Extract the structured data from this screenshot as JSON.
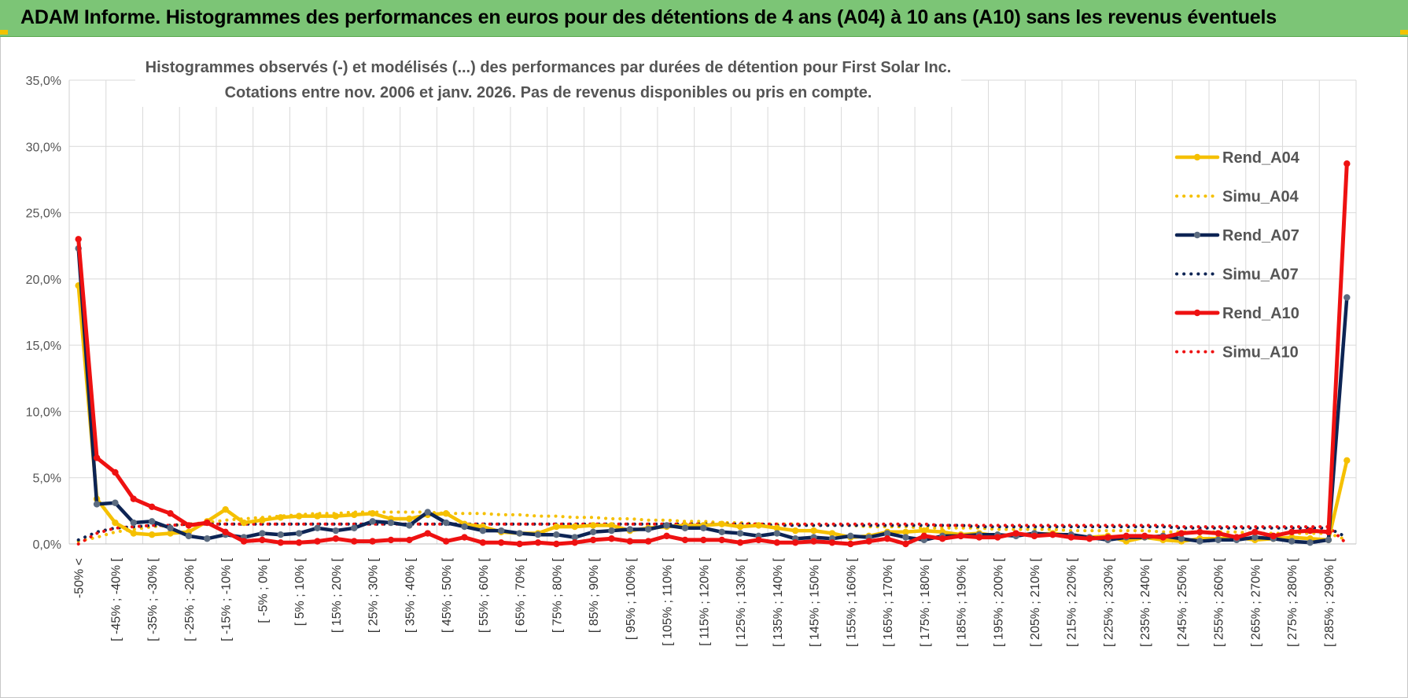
{
  "header": {
    "title": "ADAM Informe. Histogrammes des performances en euros pour des détentions de 4 ans (A04) à 10 ans (A10) sans les revenus éventuels"
  },
  "colors": {
    "a04": "#f5c000",
    "a07": "#0d2454",
    "a07_marker": "#5b6b80",
    "a10": "#ee1111",
    "header_bg": "#7cc576"
  },
  "chart_data": {
    "type": "line",
    "title": [
      "Histogrammes observés (-) et modélisés (...) des performances par durées de détention pour First Solar Inc.",
      "Cotations entre nov. 2006 et janv. 2026. Pas de revenus disponibles ou pris en compte."
    ],
    "ylim": [
      0,
      35
    ],
    "yticks": [
      "0,0%",
      "5,0%",
      "10,0%",
      "15,0%",
      "20,0%",
      "25,0%",
      "30,0%",
      "35,0%"
    ],
    "xlabels": [
      "-50% <",
      "[ -45% ; -40% [",
      "[ -35% ; -30% [",
      "[ -25% ; -20% [",
      "[ -15% ; -10% [",
      "[ -5% ; 0% [",
      "[ 5% ; 10% [",
      "[ 15% ; 20% [",
      "[ 25% ; 30% [",
      "[ 35% ; 40% [",
      "[ 45% ; 50% [",
      "[ 55% ; 60% [",
      "[ 65% ; 70% [",
      "[ 75% ; 80% [",
      "[ 85% ; 90% [",
      "[ 95% ; 100% [",
      "[ 105% ; 110% [",
      "[ 115% ; 120% [",
      "[ 125% ; 130% [",
      "[ 135% ; 140% [",
      "[ 145% ; 150% [",
      "[ 155% ; 160% [",
      "[ 165% ; 170% [",
      "[ 175% ; 180% [",
      "[ 185% ; 190% [",
      "[ 195% ; 200% [",
      "[ 205% ; 210% [",
      "[ 215% ; 220% [",
      "[ 225% ; 230% [",
      "[ 235% ; 240% [",
      "[ 245% ; 250% [",
      "[ 255% ; 260% [",
      "[ 265% ; 270% [",
      "[ 275% ; 280% [",
      "[ 285% ; 290% ["
    ],
    "n_points": 70,
    "series": [
      {
        "name": "Rend_A04",
        "style": "solid",
        "values": [
          19.5,
          3.4,
          1.6,
          0.8,
          0.7,
          0.8,
          0.9,
          1.7,
          2.6,
          1.6,
          1.8,
          2.0,
          2.1,
          2.1,
          2.1,
          2.2,
          2.3,
          1.9,
          1.9,
          2.2,
          2.3,
          1.5,
          1.3,
          0.9,
          0.8,
          0.8,
          1.3,
          1.3,
          1.4,
          1.4,
          1.0,
          1.2,
          1.3,
          1.4,
          1.4,
          1.5,
          1.3,
          1.4,
          1.2,
          1.0,
          1.0,
          0.8,
          0.5,
          0.6,
          0.9,
          0.9,
          1.0,
          0.9,
          0.7,
          0.8,
          0.6,
          0.7,
          0.7,
          0.8,
          0.6,
          0.5,
          0.6,
          0.2,
          0.5,
          0.3,
          0.2,
          0.4,
          0.4,
          0.5,
          0.3,
          0.4,
          0.5,
          0.4,
          0.3,
          6.3
        ]
      },
      {
        "name": "Simu_A04",
        "style": "dotted",
        "values": [
          0.2,
          0.5,
          0.9,
          1.1,
          1.3,
          1.4,
          1.5,
          1.6,
          1.8,
          1.9,
          2.0,
          2.1,
          2.2,
          2.3,
          2.3,
          2.4,
          2.4,
          2.4,
          2.4,
          2.4,
          2.3,
          2.3,
          2.3,
          2.2,
          2.2,
          2.1,
          2.1,
          2.0,
          2.0,
          1.9,
          1.9,
          1.8,
          1.8,
          1.7,
          1.7,
          1.6,
          1.6,
          1.5,
          1.5,
          1.5,
          1.4,
          1.4,
          1.4,
          1.3,
          1.3,
          1.3,
          1.2,
          1.2,
          1.2,
          1.2,
          1.1,
          1.1,
          1.1,
          1.1,
          1.0,
          1.0,
          1.0,
          1.0,
          1.0,
          0.9,
          0.9,
          0.9,
          0.9,
          0.9,
          0.8,
          0.8,
          0.8,
          0.8,
          0.8,
          0.3
        ]
      },
      {
        "name": "Rend_A07",
        "style": "solid",
        "values": [
          22.3,
          3.0,
          3.1,
          1.6,
          1.7,
          1.2,
          0.6,
          0.4,
          0.7,
          0.5,
          0.8,
          0.7,
          0.8,
          1.2,
          1.0,
          1.2,
          1.7,
          1.6,
          1.4,
          2.4,
          1.6,
          1.3,
          1.0,
          1.0,
          0.8,
          0.7,
          0.7,
          0.5,
          0.9,
          1.0,
          1.1,
          1.1,
          1.4,
          1.2,
          1.2,
          0.9,
          0.8,
          0.6,
          0.8,
          0.4,
          0.5,
          0.4,
          0.6,
          0.5,
          0.8,
          0.5,
          0.3,
          0.6,
          0.6,
          0.7,
          0.7,
          0.6,
          0.8,
          0.7,
          0.7,
          0.5,
          0.3,
          0.5,
          0.5,
          0.6,
          0.4,
          0.2,
          0.3,
          0.3,
          0.5,
          0.4,
          0.2,
          0.1,
          0.3,
          18.6
        ]
      },
      {
        "name": "Simu_A07",
        "style": "dotted",
        "values": [
          0.3,
          0.9,
          1.2,
          1.3,
          1.4,
          1.4,
          1.5,
          1.5,
          1.5,
          1.5,
          1.5,
          1.5,
          1.5,
          1.5,
          1.5,
          1.5,
          1.5,
          1.5,
          1.5,
          1.5,
          1.5,
          1.5,
          1.5,
          1.5,
          1.5,
          1.5,
          1.5,
          1.5,
          1.5,
          1.5,
          1.5,
          1.5,
          1.5,
          1.5,
          1.5,
          1.5,
          1.5,
          1.5,
          1.4,
          1.4,
          1.4,
          1.4,
          1.4,
          1.4,
          1.4,
          1.4,
          1.4,
          1.4,
          1.4,
          1.3,
          1.3,
          1.3,
          1.3,
          1.3,
          1.3,
          1.3,
          1.3,
          1.3,
          1.3,
          1.3,
          1.2,
          1.2,
          1.2,
          1.2,
          1.2,
          1.2,
          1.2,
          1.2,
          1.2,
          0.5
        ]
      },
      {
        "name": "Rend_A10",
        "style": "solid",
        "values": [
          23.0,
          6.5,
          5.4,
          3.4,
          2.8,
          2.3,
          1.4,
          1.6,
          0.9,
          0.2,
          0.3,
          0.1,
          0.1,
          0.2,
          0.4,
          0.2,
          0.2,
          0.3,
          0.3,
          0.8,
          0.2,
          0.5,
          0.1,
          0.1,
          0.0,
          0.1,
          0.0,
          0.1,
          0.3,
          0.4,
          0.2,
          0.2,
          0.6,
          0.3,
          0.3,
          0.3,
          0.1,
          0.3,
          0.1,
          0.1,
          0.2,
          0.1,
          0.0,
          0.2,
          0.4,
          0.0,
          0.6,
          0.4,
          0.6,
          0.5,
          0.5,
          0.8,
          0.6,
          0.7,
          0.5,
          0.4,
          0.5,
          0.6,
          0.6,
          0.5,
          0.8,
          0.9,
          0.8,
          0.5,
          0.9,
          0.6,
          0.9,
          1.0,
          0.9,
          28.7
        ]
      },
      {
        "name": "Simu_A10",
        "style": "dotted",
        "values": [
          0.0,
          0.8,
          1.2,
          1.3,
          1.4,
          1.4,
          1.5,
          1.5,
          1.5,
          1.5,
          1.5,
          1.5,
          1.5,
          1.5,
          1.5,
          1.5,
          1.5,
          1.5,
          1.5,
          1.5,
          1.5,
          1.5,
          1.5,
          1.5,
          1.5,
          1.5,
          1.5,
          1.5,
          1.5,
          1.5,
          1.5,
          1.5,
          1.5,
          1.5,
          1.5,
          1.5,
          1.5,
          1.5,
          1.5,
          1.5,
          1.5,
          1.5,
          1.5,
          1.5,
          1.5,
          1.5,
          1.5,
          1.4,
          1.4,
          1.4,
          1.4,
          1.4,
          1.4,
          1.4,
          1.4,
          1.4,
          1.4,
          1.4,
          1.4,
          1.4,
          1.3,
          1.3,
          1.3,
          1.3,
          1.3,
          1.3,
          1.3,
          1.3,
          1.3,
          0.0
        ]
      }
    ],
    "legend": {
      "position": "right",
      "entries": [
        "Rend_A04",
        "Simu_A04",
        "Rend_A07",
        "Simu_A07",
        "Rend_A10",
        "Simu_A10"
      ]
    }
  }
}
